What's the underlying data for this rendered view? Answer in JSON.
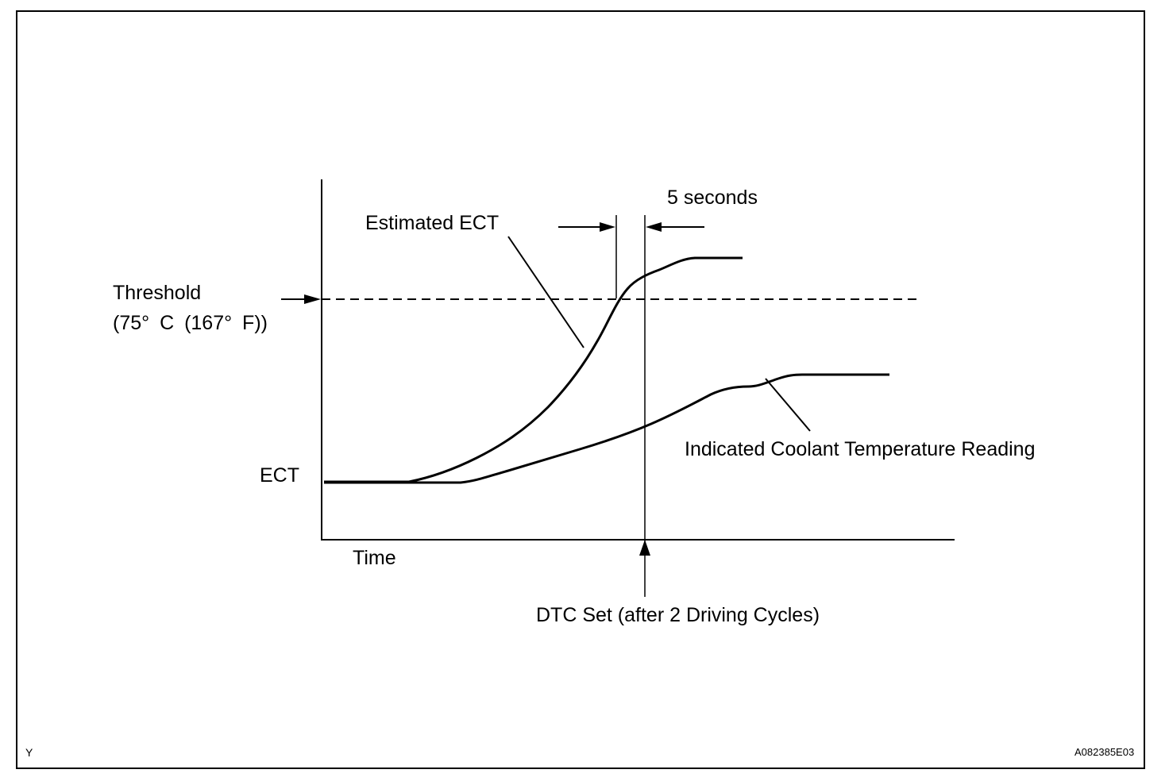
{
  "labels": {
    "threshold": "Threshold",
    "threshold_value": "(75° C (167° F))",
    "ect": "ECT",
    "time": "Time",
    "estimated_ect": "Estimated ECT",
    "five_seconds": "5 seconds",
    "indicated": "Indicated Coolant Temperature Reading",
    "dtc_set": "DTC Set (after 2 Driving Cycles)"
  },
  "corner": {
    "left": "Y",
    "right": "A082385E03"
  }
}
